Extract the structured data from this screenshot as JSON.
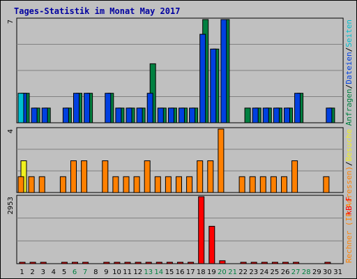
{
  "colors": {
    "background": "#c0c0c0",
    "gridline": "#808080",
    "hits": "#00c0d0",
    "files": "#0040e0",
    "pages": "#00c0d0",
    "visits": "#f0f020",
    "sites": "#ff8000",
    "kbytes": "#ff0000",
    "weekend_label": "#008040",
    "title": "#0000a0"
  },
  "chart_data": {
    "type": "bar",
    "title": "Tages-Statistik im Monat May 2017",
    "categories": [
      "1",
      "2",
      "3",
      "4",
      "5",
      "6",
      "7",
      "8",
      "9",
      "10",
      "11",
      "12",
      "13",
      "14",
      "15",
      "16",
      "17",
      "18",
      "19",
      "20",
      "21",
      "22",
      "23",
      "24",
      "25",
      "26",
      "27",
      "28",
      "29",
      "30",
      "31"
    ],
    "weekend_days": [
      "6",
      "7",
      "13",
      "14",
      "20",
      "21",
      "27",
      "28"
    ],
    "panels": [
      {
        "name": "top",
        "max_label": "7",
        "ymax": 7,
        "side_label_parts": [
          {
            "text": "Anfragen",
            "color": "#008040"
          },
          {
            "text": "/",
            "color": "#000000"
          },
          {
            "text": "Dateien",
            "color": "#0040e0"
          },
          {
            "text": "/",
            "color": "#000000"
          },
          {
            "text": "Seiten",
            "color": "#00c0d0"
          }
        ],
        "series": [
          {
            "name": "Anfragen",
            "color": "#008040",
            "values": [
              2,
              1,
              1,
              0,
              1,
              2,
              2,
              0,
              2,
              1,
              1,
              1,
              4,
              1,
              1,
              1,
              1,
              7,
              5,
              7,
              0,
              1,
              1,
              1,
              1,
              1,
              2,
              0,
              0,
              1,
              0
            ]
          },
          {
            "name": "Dateien",
            "color": "#0040e0",
            "values": [
              2,
              1,
              1,
              0,
              1,
              2,
              2,
              0,
              2,
              1,
              1,
              1,
              2,
              1,
              1,
              1,
              1,
              6,
              5,
              7,
              0,
              0,
              1,
              1,
              1,
              1,
              2,
              0,
              0,
              1,
              0
            ]
          },
          {
            "name": "Seiten",
            "color": "#00c0d0",
            "values": [
              2,
              0,
              0,
              0,
              0,
              0,
              0,
              0,
              0,
              0,
              0,
              0,
              0,
              0,
              0,
              0,
              0,
              0,
              0,
              0,
              0,
              0,
              0,
              0,
              0,
              0,
              0,
              0,
              0,
              0,
              0
            ]
          }
        ]
      },
      {
        "name": "middle",
        "max_label": "4",
        "ymax": 4,
        "side_label_parts": [
          {
            "text": "Rechner (IP-Adressen)",
            "color": "#ff8000"
          },
          {
            "text": "/",
            "color": "#000000"
          },
          {
            "text": "Besuche",
            "color": "#f0f020"
          }
        ],
        "series": [
          {
            "name": "Besuche",
            "color": "#f0f020",
            "values": [
              2,
              0,
              0,
              0,
              0,
              0,
              0,
              0,
              0,
              0,
              0,
              0,
              0,
              0,
              0,
              0,
              0,
              0,
              0,
              0,
              0,
              0,
              0,
              0,
              0,
              0,
              0,
              0,
              0,
              0,
              0
            ]
          },
          {
            "name": "Rechner",
            "color": "#ff8000",
            "values": [
              1,
              1,
              1,
              0,
              1,
              2,
              2,
              0,
              2,
              1,
              1,
              1,
              2,
              1,
              1,
              1,
              1,
              2,
              2,
              4,
              0,
              1,
              1,
              1,
              1,
              1,
              2,
              0,
              0,
              1,
              0
            ]
          }
        ]
      },
      {
        "name": "bottom",
        "max_label": "2953",
        "ymax": 2953,
        "side_label_parts": [
          {
            "text": "kB F",
            "color": "#ff0000"
          }
        ],
        "series": [
          {
            "name": "kB F",
            "color": "#ff0000",
            "values": [
              30,
              30,
              30,
              0,
              30,
              30,
              30,
              0,
              30,
              30,
              30,
              30,
              30,
              30,
              30,
              30,
              30,
              2953,
              1650,
              130,
              0,
              30,
              30,
              30,
              30,
              30,
              30,
              0,
              0,
              30,
              0
            ]
          }
        ]
      }
    ]
  }
}
